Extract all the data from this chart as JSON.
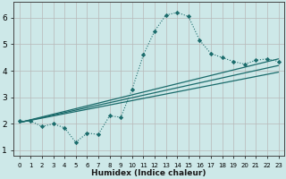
{
  "title": "",
  "xlabel": "Humidex (Indice chaleur)",
  "ylabel": "",
  "background_color": "#cde8e8",
  "grid_color": "#b8b8b8",
  "line_color": "#1a6b6b",
  "xlim": [
    -0.5,
    23.5
  ],
  "ylim": [
    0.8,
    6.6
  ],
  "xticks": [
    0,
    1,
    2,
    3,
    4,
    5,
    6,
    7,
    8,
    9,
    10,
    11,
    12,
    13,
    14,
    15,
    16,
    17,
    18,
    19,
    20,
    21,
    22,
    23
  ],
  "yticks": [
    1,
    2,
    3,
    4,
    5,
    6
  ],
  "curve_x": [
    0,
    1,
    2,
    3,
    4,
    5,
    6,
    7,
    8,
    9,
    10,
    11,
    12,
    13,
    14,
    15,
    16,
    17,
    18,
    19,
    20,
    21,
    22,
    23
  ],
  "curve_y": [
    2.1,
    2.1,
    1.9,
    2.0,
    1.85,
    1.3,
    1.65,
    1.6,
    2.3,
    2.25,
    3.3,
    4.6,
    5.5,
    6.1,
    6.2,
    6.05,
    5.15,
    4.65,
    4.5,
    4.35,
    4.25,
    4.4,
    4.45,
    4.35
  ],
  "line1_x": [
    0,
    23
  ],
  "line1_y": [
    2.05,
    4.45
  ],
  "line2_x": [
    0,
    23
  ],
  "line2_y": [
    2.05,
    4.2
  ],
  "line3_x": [
    0,
    23
  ],
  "line3_y": [
    2.05,
    3.95
  ]
}
